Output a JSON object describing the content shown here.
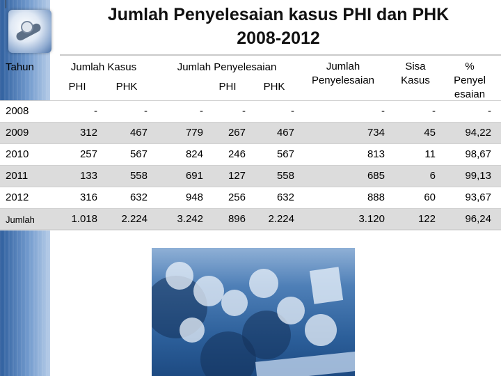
{
  "title": {
    "line1": "Jumlah Penyelesaian kasus PHI dan PHK",
    "line2": "2008-2012"
  },
  "table": {
    "header": {
      "tahun": "Tahun",
      "jumlah_kasus": "Jumlah Kasus",
      "jumlah_penyelesaian": "Jumlah  Penyelesaian",
      "phi_1": "PHI",
      "phk_1": "PHK",
      "phi_2": "PHI",
      "phk_2": "PHK",
      "jumlah_penyelesaian_total_l1": "Jumlah",
      "jumlah_penyelesaian_total_l2": "Penyelesaian",
      "sisa_l1": "Sisa",
      "sisa_l2": "Kasus",
      "persen_l1": "%",
      "persen_l2": "Penyel",
      "persen_l3": "esaian"
    },
    "rows": [
      {
        "year": "2008",
        "kasus_phi": "-",
        "kasus_phk": "-",
        "kasus_total": "-",
        "pen_phi": "-",
        "pen_phk": "-",
        "pen_total": "-",
        "sisa": "-",
        "persen": "-"
      },
      {
        "year": "2009",
        "kasus_phi": "312",
        "kasus_phk": "467",
        "kasus_total": "779",
        "pen_phi": "267",
        "pen_phk": "467",
        "pen_total": "734",
        "sisa": "45",
        "persen": "94,22"
      },
      {
        "year": "2010",
        "kasus_phi": "257",
        "kasus_phk": "567",
        "kasus_total": "824",
        "pen_phi": "246",
        "pen_phk": "567",
        "pen_total": "813",
        "sisa": "11",
        "persen": "98,67"
      },
      {
        "year": "2011",
        "kasus_phi": "133",
        "kasus_phk": "558",
        "kasus_total": "691",
        "pen_phi": "127",
        "pen_phk": "558",
        "pen_total": "685",
        "sisa": "6",
        "persen": "99,13"
      },
      {
        "year": "2012",
        "kasus_phi": "316",
        "kasus_phk": "632",
        "kasus_total": "948",
        "pen_phi": "256",
        "pen_phk": "632",
        "pen_total": "888",
        "sisa": "60",
        "persen": "93,67"
      },
      {
        "year": "Jumlah",
        "kasus_phi": "1.018",
        "kasus_phk": "2.224",
        "kasus_total": "3.242",
        "pen_phi": "896",
        "pen_phk": "2.224",
        "pen_total": "3.120",
        "sisa": "122",
        "persen": "96,24"
      }
    ]
  },
  "colors": {
    "band": "#2f5f9e",
    "row_shade": "#dcdcdc",
    "photo_tint": "#2c5f9a"
  },
  "icons": {
    "logo": "hardware-logo-icon",
    "photo": "protest-crowd-photo"
  }
}
